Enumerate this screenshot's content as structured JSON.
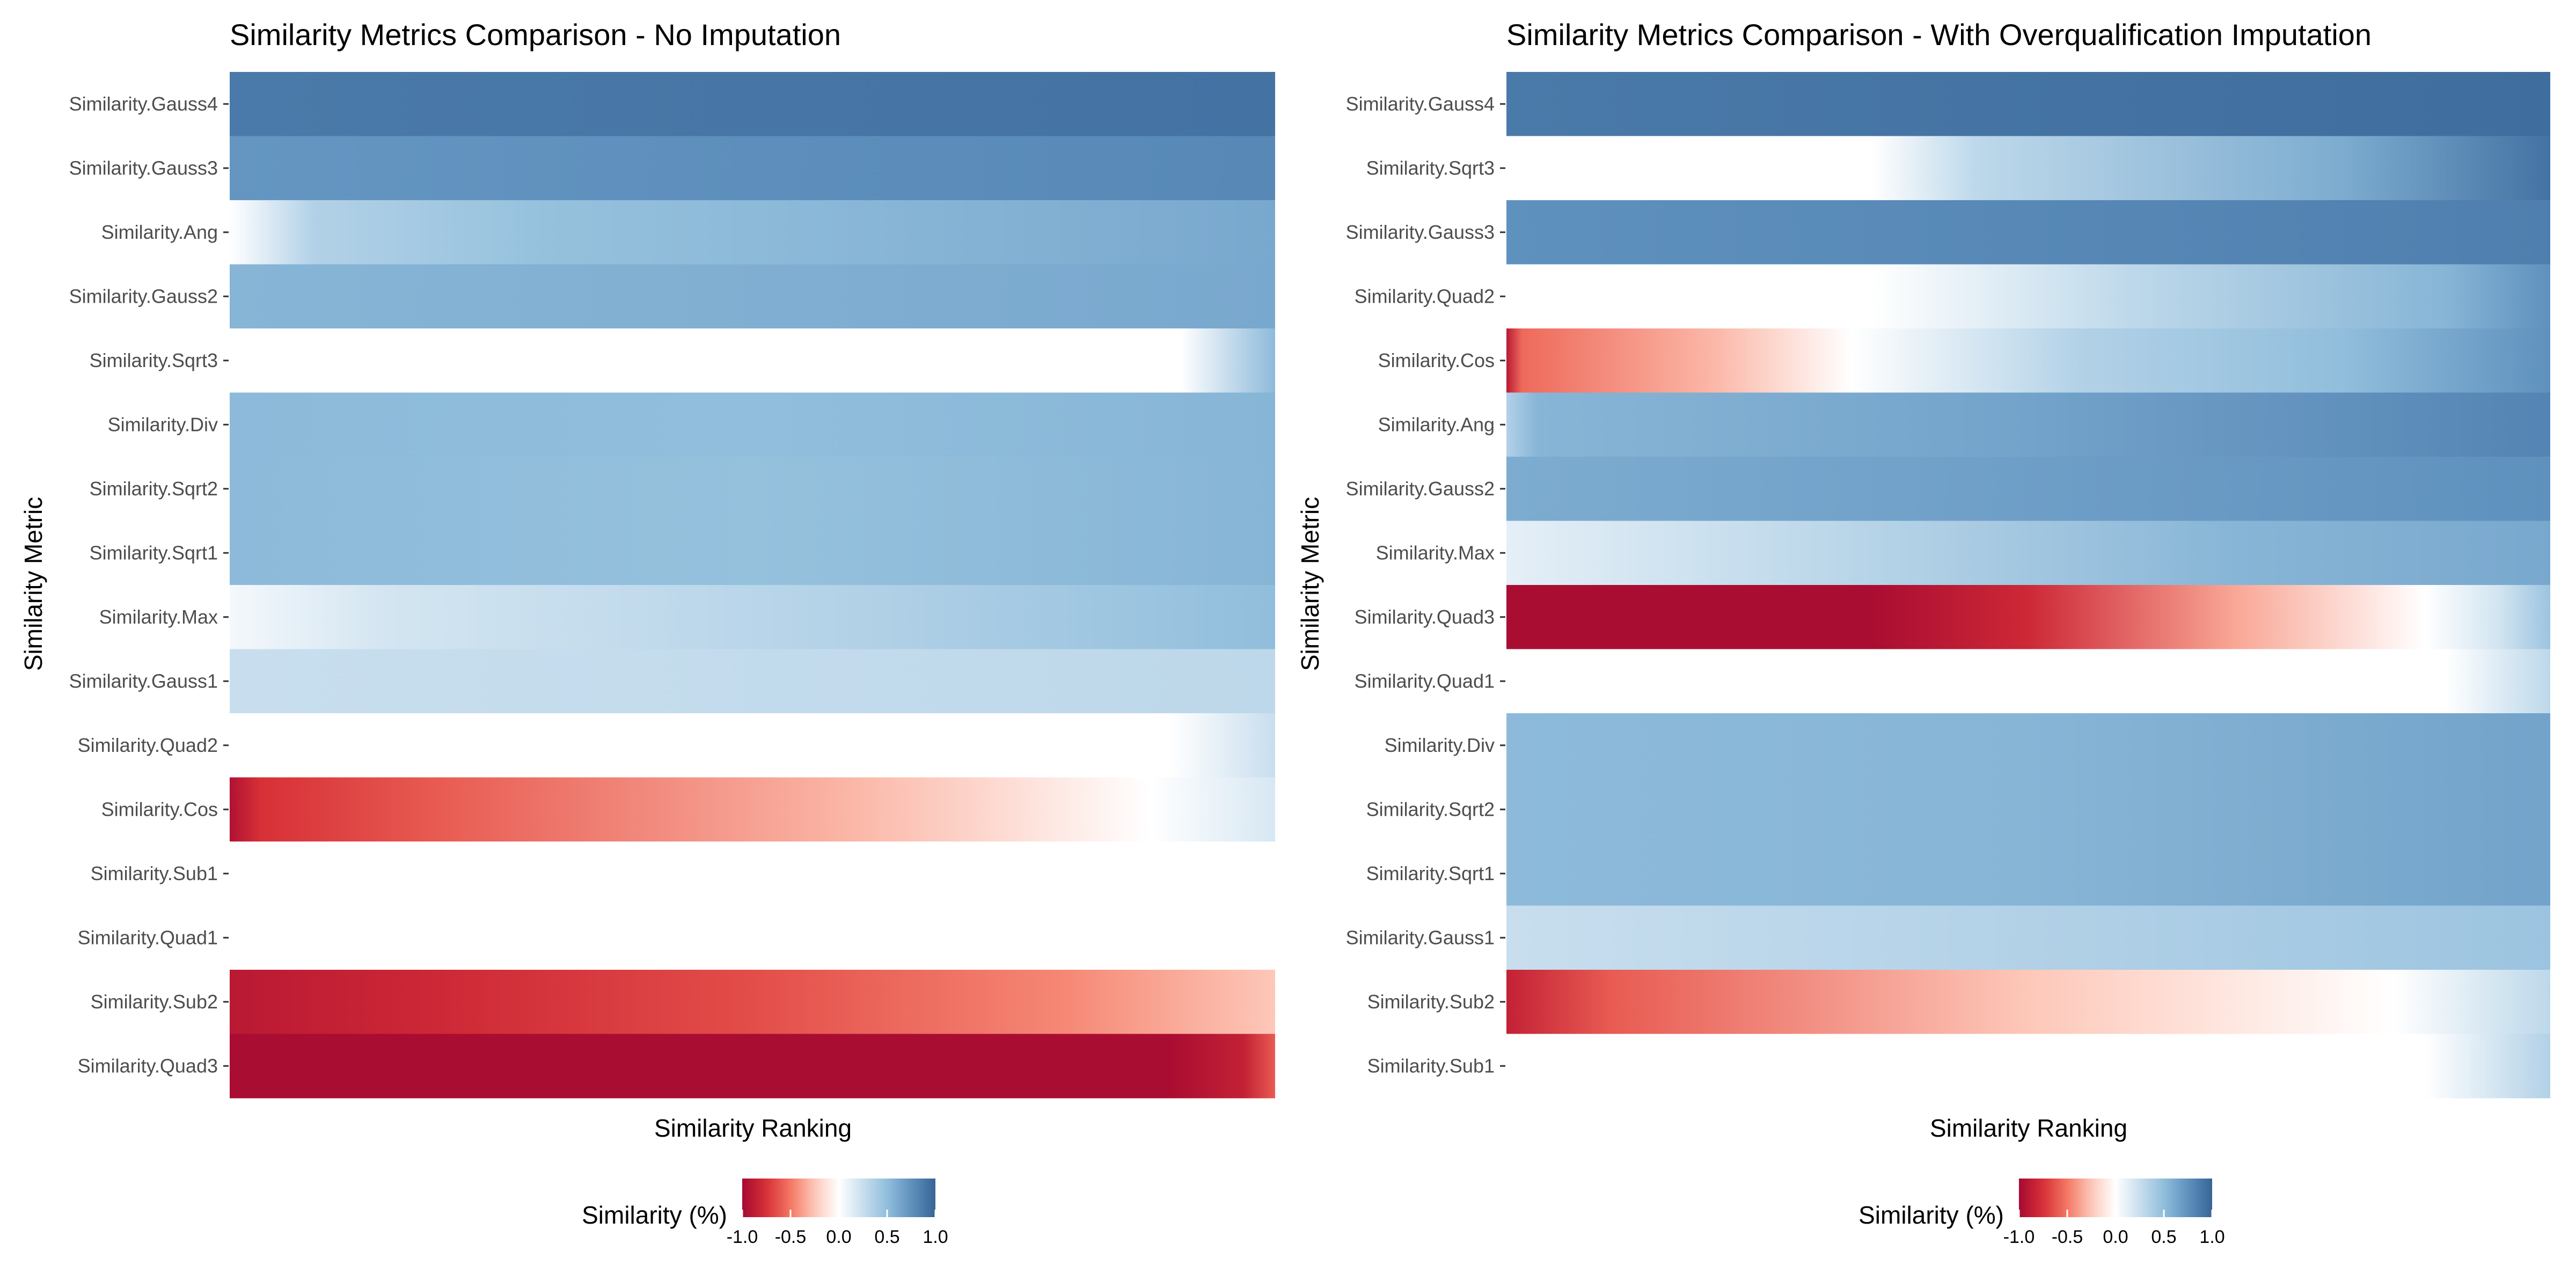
{
  "chart_data": [
    {
      "type": "heatmap",
      "title": "Similarity Metrics Comparison - No Imputation",
      "xlabel": "Similarity Ranking",
      "ylabel": "Similarity Metric",
      "legend": {
        "title": "Similarity (%)",
        "ticks": [
          "-1.0",
          "-0.5",
          "0.0",
          "0.5",
          "1.0"
        ],
        "range": [
          -1,
          1
        ],
        "position": "bottom"
      },
      "rows": [
        {
          "name": "Similarity.Gauss4",
          "stops": [
            [
              0,
              0.88
            ],
            [
              1,
              0.92
            ]
          ]
        },
        {
          "name": "Similarity.Gauss3",
          "stops": [
            [
              0,
              0.72
            ],
            [
              1,
              0.8
            ]
          ]
        },
        {
          "name": "Similarity.Ang",
          "stops": [
            [
              0,
              0.0
            ],
            [
              0.08,
              0.35
            ],
            [
              0.3,
              0.48
            ],
            [
              1,
              0.62
            ]
          ]
        },
        {
          "name": "Similarity.Gauss2",
          "stops": [
            [
              0,
              0.55
            ],
            [
              1,
              0.62
            ]
          ]
        },
        {
          "name": "Similarity.Sqrt3",
          "stops": [
            [
              0,
              0.0
            ],
            [
              0.91,
              0.0
            ],
            [
              1,
              0.52
            ]
          ]
        },
        {
          "name": "Similarity.Div",
          "stops": [
            [
              0,
              0.52
            ],
            [
              0.5,
              0.5
            ],
            [
              1,
              0.55
            ]
          ]
        },
        {
          "name": "Similarity.Sqrt2",
          "stops": [
            [
              0,
              0.52
            ],
            [
              0.5,
              0.48
            ],
            [
              1,
              0.55
            ]
          ]
        },
        {
          "name": "Similarity.Sqrt1",
          "stops": [
            [
              0,
              0.52
            ],
            [
              0.5,
              0.48
            ],
            [
              1,
              0.55
            ]
          ]
        },
        {
          "name": "Similarity.Max",
          "stops": [
            [
              0,
              0.05
            ],
            [
              0.15,
              0.2
            ],
            [
              0.6,
              0.35
            ],
            [
              1,
              0.5
            ]
          ]
        },
        {
          "name": "Similarity.Gauss1",
          "stops": [
            [
              0,
              0.25
            ],
            [
              1,
              0.3
            ]
          ]
        },
        {
          "name": "Similarity.Quad2",
          "stops": [
            [
              0,
              0.0
            ],
            [
              0.9,
              0.0
            ],
            [
              1,
              0.25
            ]
          ]
        },
        {
          "name": "Similarity.Cos",
          "stops": [
            [
              0,
              -0.95
            ],
            [
              0.03,
              -0.75
            ],
            [
              0.2,
              -0.6
            ],
            [
              0.6,
              -0.3
            ],
            [
              0.88,
              0.0
            ],
            [
              1,
              0.18
            ]
          ]
        },
        {
          "name": "Similarity.Sub1",
          "stops": [
            [
              0,
              0.0
            ],
            [
              1,
              0.0
            ]
          ]
        },
        {
          "name": "Similarity.Quad1",
          "stops": [
            [
              0,
              0.0
            ],
            [
              1,
              0.0
            ]
          ]
        },
        {
          "name": "Similarity.Sub2",
          "stops": [
            [
              0,
              -0.9
            ],
            [
              0.2,
              -0.8
            ],
            [
              0.5,
              -0.65
            ],
            [
              0.8,
              -0.45
            ],
            [
              1,
              -0.25
            ]
          ]
        },
        {
          "name": "Similarity.Quad3",
          "stops": [
            [
              0,
              -0.98
            ],
            [
              0.9,
              -0.98
            ],
            [
              0.97,
              -0.85
            ],
            [
              1,
              -0.6
            ]
          ]
        }
      ]
    },
    {
      "type": "heatmap",
      "title": "Similarity Metrics Comparison - With Overqualification Imputation",
      "xlabel": "Similarity Ranking",
      "ylabel": "Similarity Metric",
      "legend": {
        "title": "Similarity (%)",
        "ticks": [
          "-1.0",
          "-0.5",
          "0.0",
          "0.5",
          "1.0"
        ],
        "range": [
          -1,
          1
        ],
        "position": "bottom"
      },
      "rows": [
        {
          "name": "Similarity.Gauss4",
          "stops": [
            [
              0,
              0.88
            ],
            [
              1,
              0.95
            ]
          ]
        },
        {
          "name": "Similarity.Sqrt3",
          "stops": [
            [
              0,
              0.0
            ],
            [
              0.35,
              0.0
            ],
            [
              0.45,
              0.3
            ],
            [
              0.8,
              0.6
            ],
            [
              1,
              0.92
            ]
          ]
        },
        {
          "name": "Similarity.Gauss3",
          "stops": [
            [
              0,
              0.75
            ],
            [
              1,
              0.85
            ]
          ]
        },
        {
          "name": "Similarity.Quad2",
          "stops": [
            [
              0,
              0.0
            ],
            [
              0.35,
              0.0
            ],
            [
              0.6,
              0.3
            ],
            [
              0.9,
              0.55
            ],
            [
              1,
              0.75
            ]
          ]
        },
        {
          "name": "Similarity.Cos",
          "stops": [
            [
              0,
              -0.9
            ],
            [
              0.015,
              -0.55
            ],
            [
              0.2,
              -0.3
            ],
            [
              0.33,
              0.0
            ],
            [
              0.55,
              0.35
            ],
            [
              0.8,
              0.5
            ],
            [
              1,
              0.75
            ]
          ]
        },
        {
          "name": "Similarity.Ang",
          "stops": [
            [
              0,
              0.35
            ],
            [
              0.03,
              0.55
            ],
            [
              0.5,
              0.65
            ],
            [
              1,
              0.82
            ]
          ]
        },
        {
          "name": "Similarity.Gauss2",
          "stops": [
            [
              0,
              0.6
            ],
            [
              1,
              0.75
            ]
          ]
        },
        {
          "name": "Similarity.Max",
          "stops": [
            [
              0,
              0.12
            ],
            [
              0.3,
              0.3
            ],
            [
              0.7,
              0.55
            ],
            [
              1,
              0.62
            ]
          ]
        },
        {
          "name": "Similarity.Quad3",
          "stops": [
            [
              0,
              -0.98
            ],
            [
              0.35,
              -0.98
            ],
            [
              0.5,
              -0.8
            ],
            [
              0.7,
              -0.35
            ],
            [
              0.88,
              0.0
            ],
            [
              0.95,
              0.2
            ],
            [
              1,
              0.45
            ]
          ]
        },
        {
          "name": "Similarity.Quad1",
          "stops": [
            [
              0,
              0.0
            ],
            [
              0.9,
              0.0
            ],
            [
              1,
              0.3
            ]
          ]
        },
        {
          "name": "Similarity.Div",
          "stops": [
            [
              0,
              0.52
            ],
            [
              0.5,
              0.55
            ],
            [
              1,
              0.65
            ]
          ]
        },
        {
          "name": "Similarity.Sqrt2",
          "stops": [
            [
              0,
              0.52
            ],
            [
              0.5,
              0.55
            ],
            [
              1,
              0.65
            ]
          ]
        },
        {
          "name": "Similarity.Sqrt1",
          "stops": [
            [
              0,
              0.52
            ],
            [
              0.5,
              0.55
            ],
            [
              1,
              0.65
            ]
          ]
        },
        {
          "name": "Similarity.Gauss1",
          "stops": [
            [
              0,
              0.25
            ],
            [
              1,
              0.45
            ]
          ]
        },
        {
          "name": "Similarity.Sub2",
          "stops": [
            [
              0,
              -0.85
            ],
            [
              0.1,
              -0.6
            ],
            [
              0.5,
              -0.25
            ],
            [
              0.85,
              0.0
            ],
            [
              1,
              0.3
            ]
          ]
        },
        {
          "name": "Similarity.Sub1",
          "stops": [
            [
              0,
              0.0
            ],
            [
              0.88,
              0.0
            ],
            [
              1,
              0.35
            ]
          ]
        }
      ]
    }
  ]
}
